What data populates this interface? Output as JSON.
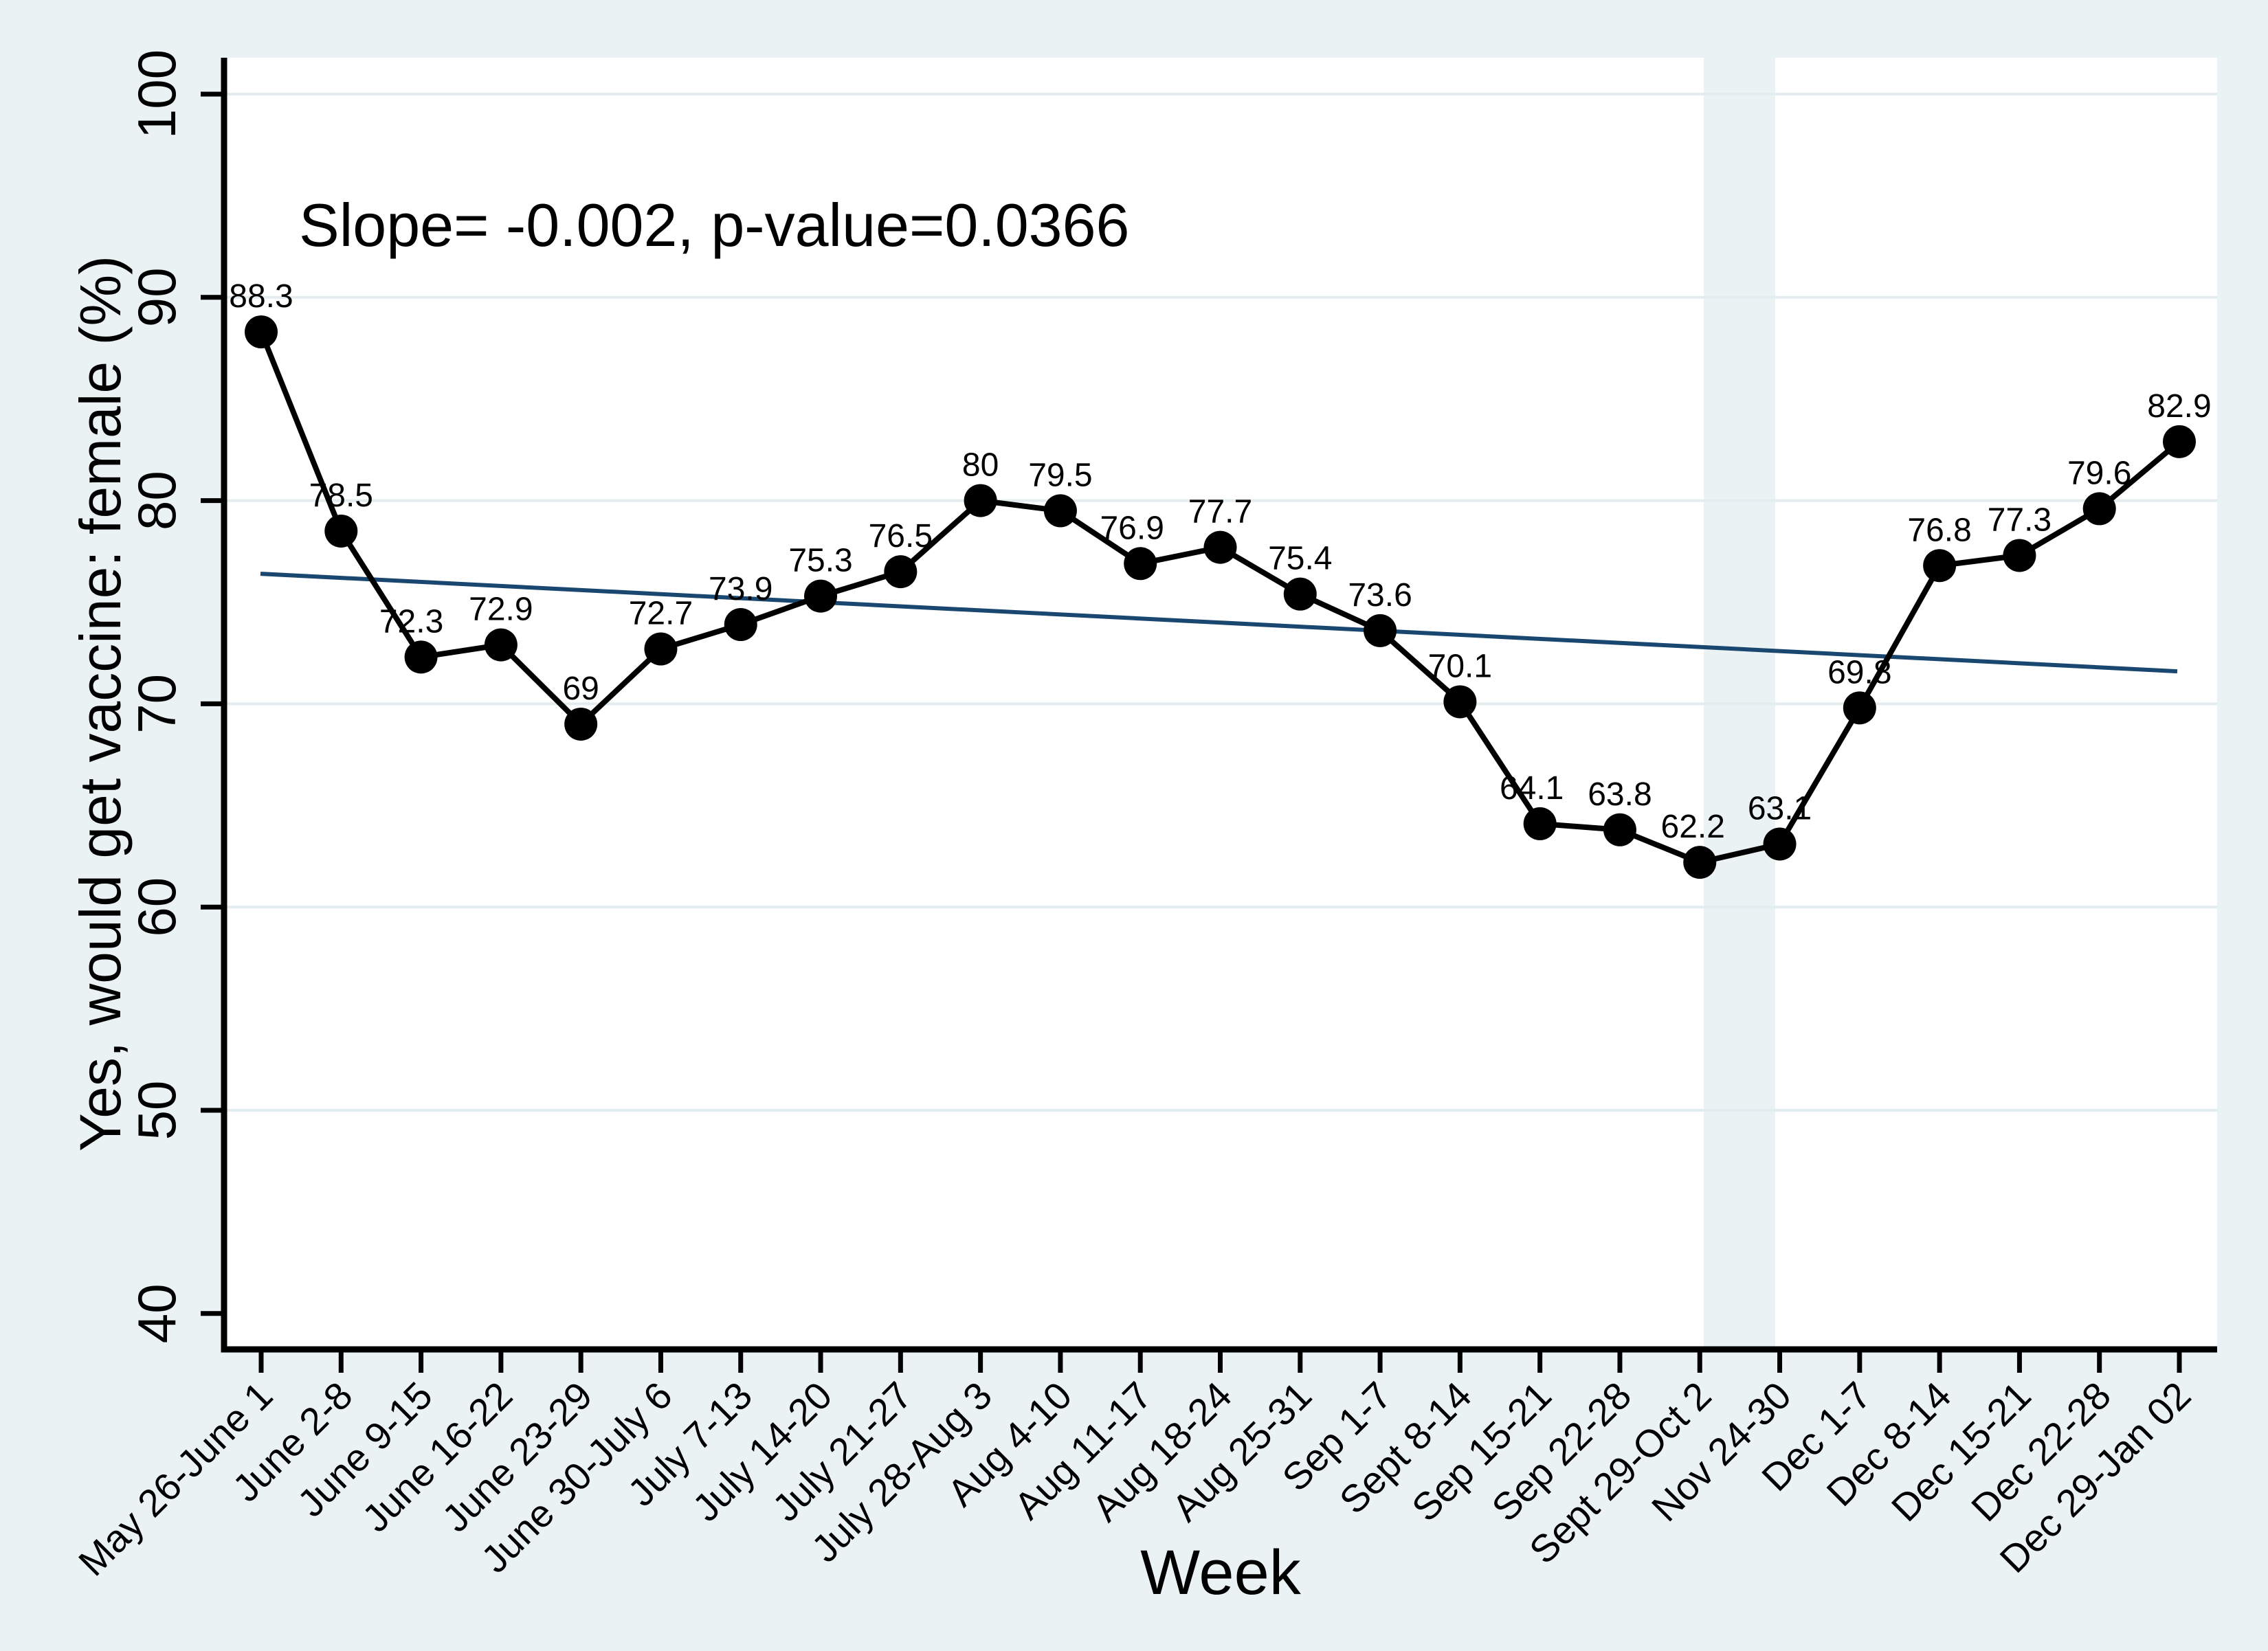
{
  "chart_data": {
    "type": "line",
    "title": "",
    "xlabel": "Week",
    "ylabel": "Yes, would get vaccine: female (%)",
    "annotation": "Slope= -0.002, p-value=0.0366",
    "categories": [
      "May 26-June 1",
      "June 2-8",
      "June 9-15",
      "June 16-22",
      "June 23-29",
      "June 30-July 6",
      "July 7-13",
      "July 14-20",
      "July 21-27",
      "July 28-Aug 3",
      "Aug 4-10",
      "Aug 11-17",
      "Aug 18-24",
      "Aug 25-31",
      "Sep 1-7",
      "Sept 8-14",
      "Sep 15-21",
      "Sep 22-28",
      "Sept 29-Oct 2",
      "Nov 24-30",
      "Dec 1-7",
      "Dec 8-14",
      "Dec 15-21",
      "Dec 22-28",
      "Dec 29-Jan 02"
    ],
    "series": [
      {
        "name": "Yes, would get vaccine: female (%)",
        "values": [
          88.3,
          78.5,
          72.3,
          72.9,
          69,
          72.7,
          73.9,
          75.3,
          76.5,
          80,
          79.5,
          76.9,
          77.7,
          75.4,
          73.6,
          70.1,
          64.1,
          63.8,
          62.2,
          63.1,
          69.8,
          76.8,
          77.3,
          79.6,
          82.9
        ]
      }
    ],
    "trend_line": {
      "start_value": 76.4,
      "end_value": 71.6,
      "slope": "-0.002",
      "p_value": "0.0366"
    },
    "gap_band": {
      "between": [
        "Sept 29-Oct 2",
        "Nov 24-30"
      ]
    },
    "ylim": [
      40,
      100
    ],
    "yticks": [
      40,
      50,
      60,
      70,
      80,
      90,
      100
    ],
    "grid": true,
    "legend": "none",
    "colors": {
      "background": "#eaf2f3",
      "plot_background": "#ffffff",
      "gridline": "#e3ecef",
      "series_line": "#000000",
      "marker": "#000000",
      "trend_line": "#1a476f",
      "axis": "#000000",
      "text": "#000000"
    }
  }
}
